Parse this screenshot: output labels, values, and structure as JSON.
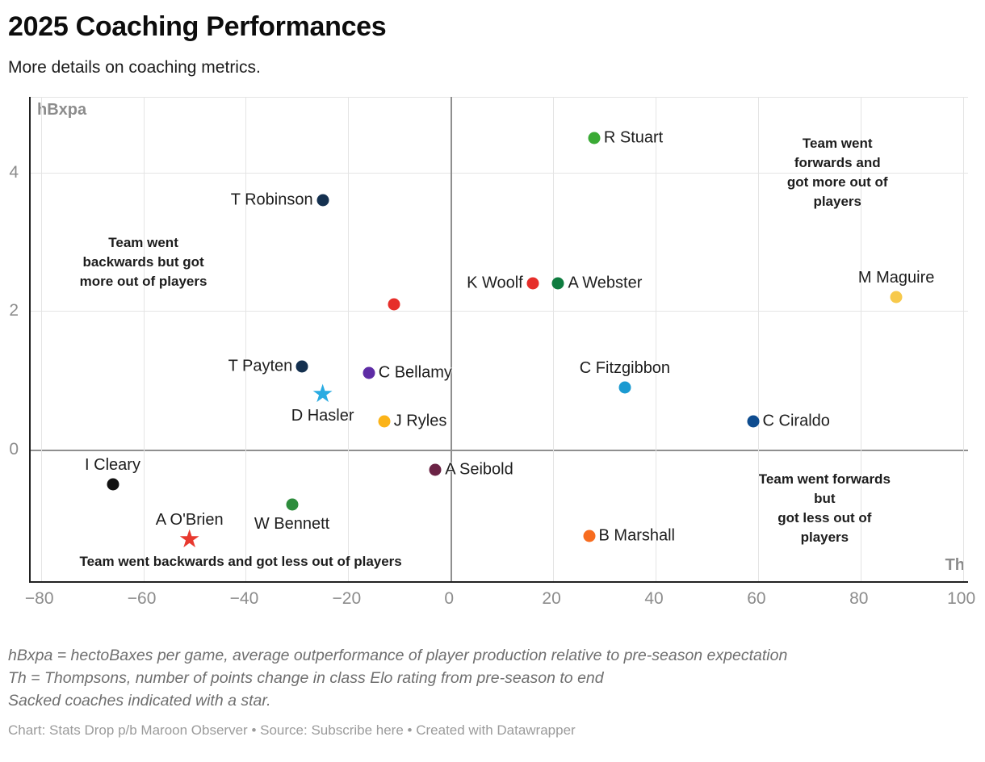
{
  "header": {
    "title": "2025 Coaching Performances",
    "subtitle": "More details on coaching metrics."
  },
  "chart_data": {
    "type": "scatter",
    "x_axis_label": "Th",
    "y_axis_label": "hBxpa",
    "xlim": [
      -82,
      101
    ],
    "ylim": [
      -1.9,
      5.1
    ],
    "xticks": [
      -80,
      -60,
      -40,
      -20,
      0,
      20,
      40,
      60,
      80,
      100
    ],
    "yticks": [
      0,
      2,
      4
    ],
    "grid": true,
    "points": [
      {
        "name": "R Stuart",
        "x": 28,
        "y": 4.5,
        "color": "#3aaa35",
        "marker": "dot",
        "label_side": "right"
      },
      {
        "name": "T Robinson",
        "x": -25,
        "y": 3.6,
        "color": "#14304f",
        "marker": "dot",
        "label_side": "left"
      },
      {
        "name": "K Woolf",
        "x": 16,
        "y": 2.4,
        "color": "#e62e2a",
        "marker": "dot",
        "label_side": "left"
      },
      {
        "name": "A Webster",
        "x": 21,
        "y": 2.4,
        "color": "#0e7c3f",
        "marker": "dot",
        "label_side": "right"
      },
      {
        "name": "M Maguire",
        "x": 87,
        "y": 2.2,
        "color": "#f7c94b",
        "marker": "dot",
        "label_side": "above"
      },
      {
        "name": "",
        "x": -11,
        "y": 2.1,
        "color": "#e62e2a",
        "marker": "dot",
        "label_side": "none"
      },
      {
        "name": "T Payten",
        "x": -29,
        "y": 1.2,
        "color": "#14304f",
        "marker": "dot",
        "label_side": "left"
      },
      {
        "name": "C Bellamy",
        "x": -16,
        "y": 1.1,
        "color": "#5e2ca5",
        "marker": "dot",
        "label_side": "right"
      },
      {
        "name": "C Fitzgibbon",
        "x": 34,
        "y": 0.9,
        "color": "#1b9ad1",
        "marker": "dot",
        "label_side": "above"
      },
      {
        "name": "D Hasler",
        "x": -25,
        "y": 0.8,
        "color": "#29abe2",
        "marker": "star",
        "label_side": "below"
      },
      {
        "name": "J Ryles",
        "x": -13,
        "y": 0.4,
        "color": "#fbb318",
        "marker": "dot",
        "label_side": "right"
      },
      {
        "name": "C Ciraldo",
        "x": 59,
        "y": 0.4,
        "color": "#0e4c8f",
        "marker": "dot",
        "label_side": "right"
      },
      {
        "name": "A Seibold",
        "x": -3,
        "y": -0.3,
        "color": "#6b2345",
        "marker": "dot",
        "label_side": "right"
      },
      {
        "name": "I Cleary",
        "x": -66,
        "y": -0.5,
        "color": "#111111",
        "marker": "dot",
        "label_side": "above"
      },
      {
        "name": "W Bennett",
        "x": -31,
        "y": -0.8,
        "color": "#2d8c3c",
        "marker": "dot",
        "label_side": "below"
      },
      {
        "name": "A O'Brien",
        "x": -51,
        "y": -1.3,
        "color": "#e8392f",
        "marker": "star",
        "label_side": "above"
      },
      {
        "name": "B Marshall",
        "x": 27,
        "y": -1.25,
        "color": "#f76c1f",
        "marker": "dot",
        "label_side": "right"
      }
    ],
    "annotations": [
      {
        "lines": [
          "Team went",
          "backwards but got",
          "more out of players"
        ],
        "x": -60,
        "y": 2.7
      },
      {
        "lines": [
          "Team went forwards and",
          "got more out of players"
        ],
        "x": 75.5,
        "y": 4.0
      },
      {
        "lines": [
          "Team went forwards but",
          "got less out of players"
        ],
        "x": 73,
        "y": -0.85
      },
      {
        "lines": [
          "Team went backwards and got less out of players"
        ],
        "x": -41,
        "y": -1.63
      }
    ]
  },
  "footer": {
    "note_lines": [
      "hBxpa = hectoBaxes per game, average outperformance of player production relative to pre-season expectation",
      "Th = Thompsons, number of points change in class Elo rating from pre-season to end",
      "Sacked coaches indicated with a star."
    ],
    "attribution": {
      "chart_label": "Chart:",
      "chart_value": "Stats Drop p/b Maroon Observer",
      "separator": "•",
      "source_label": "Source:",
      "source_link": "Subscribe here",
      "created": "Created with Datawrapper"
    }
  }
}
